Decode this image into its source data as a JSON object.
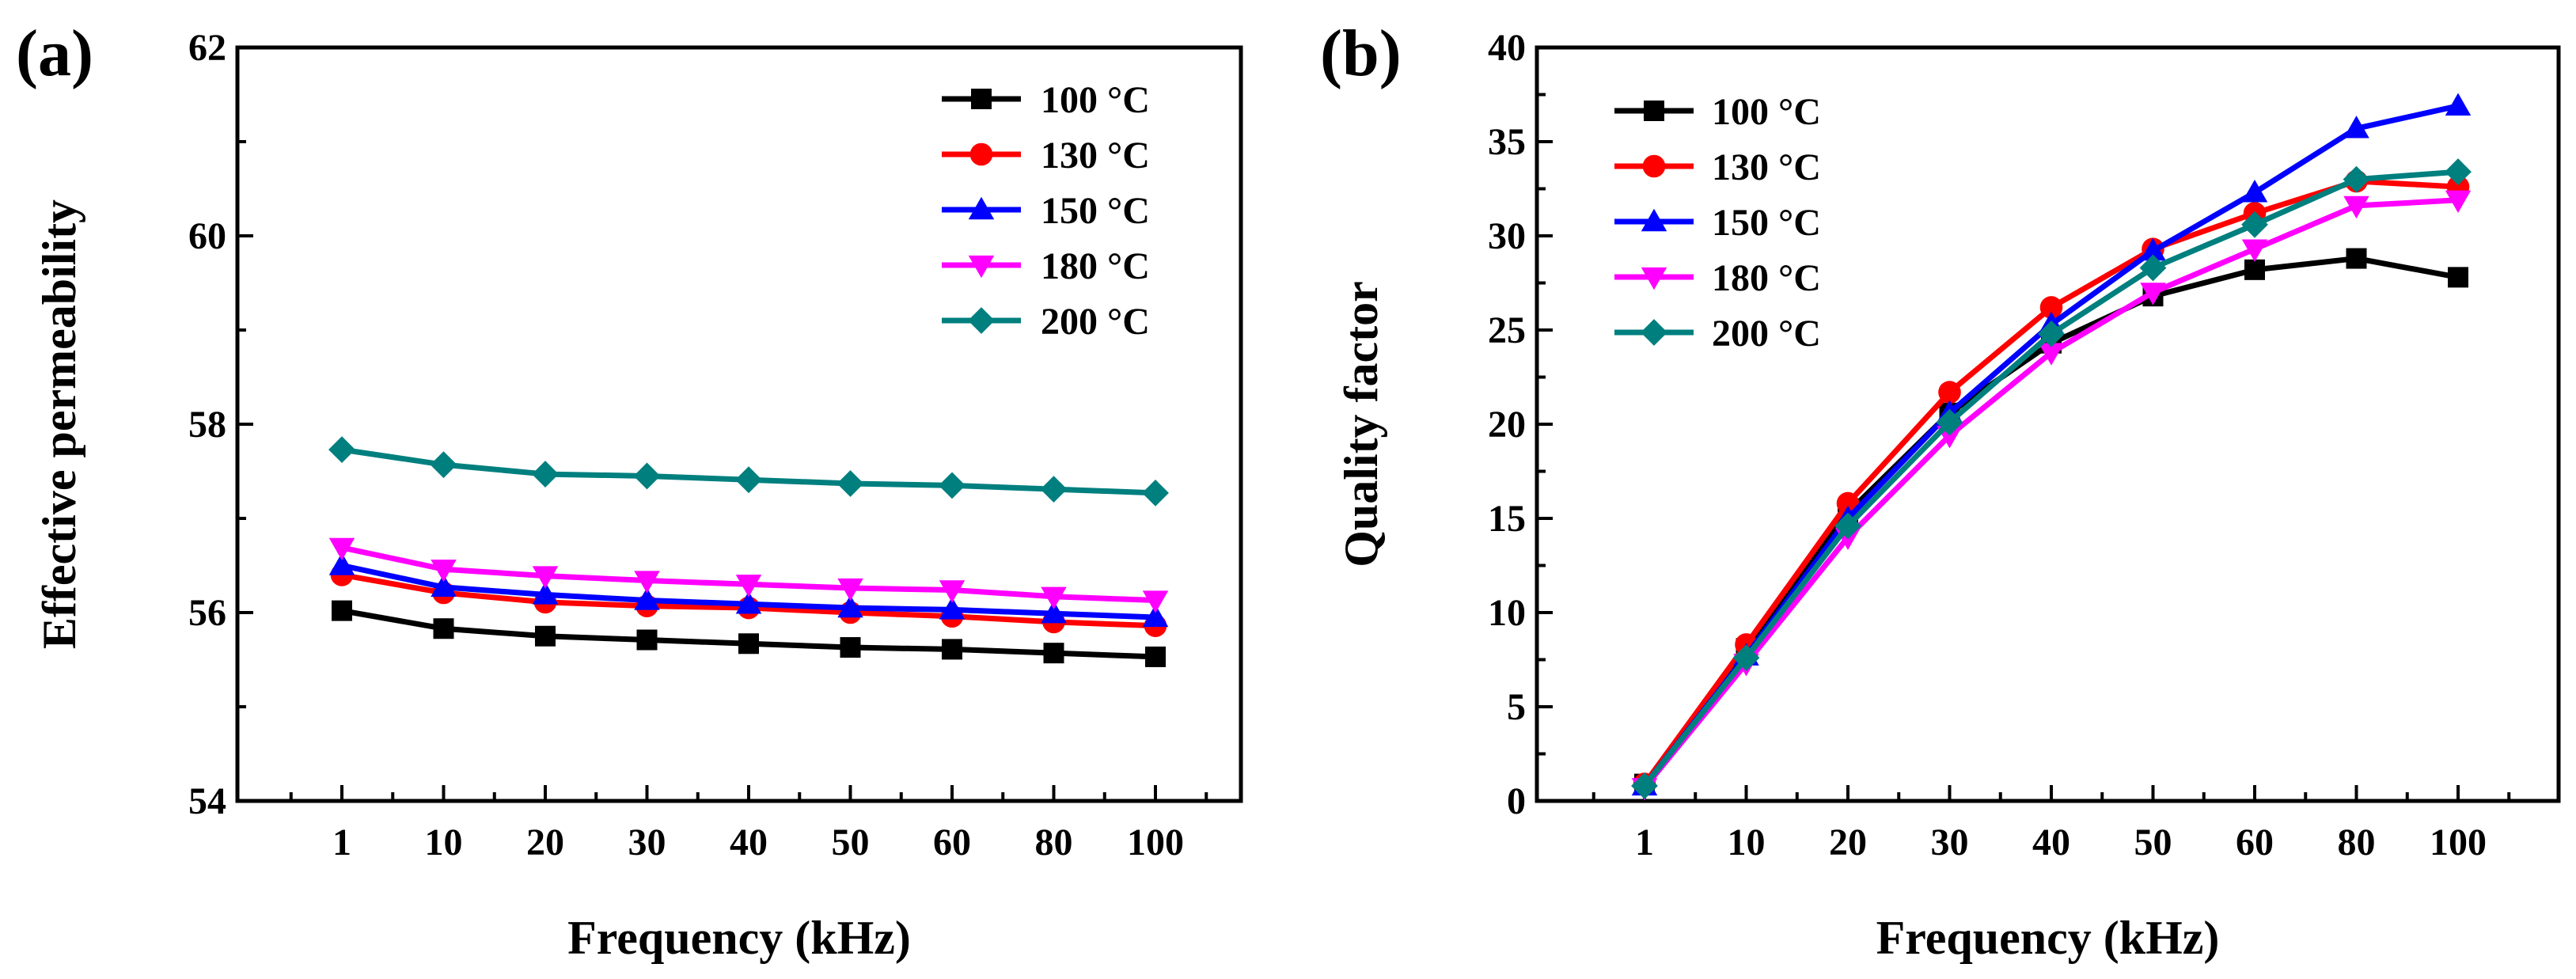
{
  "chart_data": [
    {
      "type": "line",
      "panel_label": "(a)",
      "xlabel": "Frequency (kHz)",
      "ylabel": "Effective permeability",
      "categories": [
        "1",
        "10",
        "20",
        "30",
        "40",
        "50",
        "60",
        "80",
        "100"
      ],
      "ylim": [
        54,
        62
      ],
      "yticks": [
        54,
        56,
        58,
        60,
        62
      ],
      "grid": false,
      "legend_position": "top-right",
      "series": [
        {
          "name": "100 °C",
          "color": "#000000",
          "marker": "square",
          "values": [
            56.02,
            55.83,
            55.75,
            55.71,
            55.67,
            55.63,
            55.61,
            55.57,
            55.53
          ]
        },
        {
          "name": "130 °C",
          "color": "#ff0000",
          "marker": "circle",
          "values": [
            56.4,
            56.21,
            56.11,
            56.07,
            56.05,
            56.0,
            55.96,
            55.9,
            55.86
          ]
        },
        {
          "name": "150 °C",
          "color": "#0000ff",
          "marker": "triangle-up",
          "values": [
            56.5,
            56.27,
            56.19,
            56.13,
            56.09,
            56.05,
            56.03,
            55.99,
            55.95
          ]
        },
        {
          "name": "180 °C",
          "color": "#ff00ff",
          "marker": "triangle-down",
          "values": [
            56.69,
            56.46,
            56.39,
            56.34,
            56.3,
            56.26,
            56.24,
            56.17,
            56.13
          ]
        },
        {
          "name": "200 °C",
          "color": "#007f7f",
          "marker": "diamond",
          "values": [
            57.73,
            57.57,
            57.47,
            57.45,
            57.41,
            57.37,
            57.35,
            57.31,
            57.27
          ]
        }
      ]
    },
    {
      "type": "line",
      "panel_label": "(b)",
      "xlabel": "Frequency (kHz)",
      "ylabel": "Quality factor",
      "categories": [
        "1",
        "10",
        "20",
        "30",
        "40",
        "50",
        "60",
        "80",
        "100"
      ],
      "ylim": [
        0,
        40
      ],
      "yticks": [
        0,
        5,
        10,
        15,
        20,
        25,
        30,
        35,
        40
      ],
      "grid": false,
      "legend_position": "top-left",
      "series": [
        {
          "name": "100 °C",
          "color": "#000000",
          "marker": "square",
          "values": [
            0.9,
            8.1,
            15.3,
            20.6,
            24.3,
            26.8,
            28.2,
            28.8,
            27.8
          ]
        },
        {
          "name": "130 °C",
          "color": "#ff0000",
          "marker": "circle",
          "values": [
            0.9,
            8.3,
            15.8,
            21.7,
            26.2,
            29.3,
            31.2,
            32.9,
            32.6
          ]
        },
        {
          "name": "150 °C",
          "color": "#0000ff",
          "marker": "triangle-up",
          "values": [
            0.8,
            7.7,
            15.0,
            20.6,
            25.3,
            29.2,
            32.3,
            35.7,
            36.9
          ]
        },
        {
          "name": "180 °C",
          "color": "#ff00ff",
          "marker": "triangle-down",
          "values": [
            0.7,
            7.3,
            14.0,
            19.4,
            23.8,
            27.0,
            29.3,
            31.6,
            31.9
          ]
        },
        {
          "name": "200 °C",
          "color": "#007f7f",
          "marker": "diamond",
          "values": [
            0.8,
            7.6,
            14.6,
            20.1,
            24.8,
            28.3,
            30.6,
            33.0,
            33.4
          ]
        }
      ]
    }
  ]
}
